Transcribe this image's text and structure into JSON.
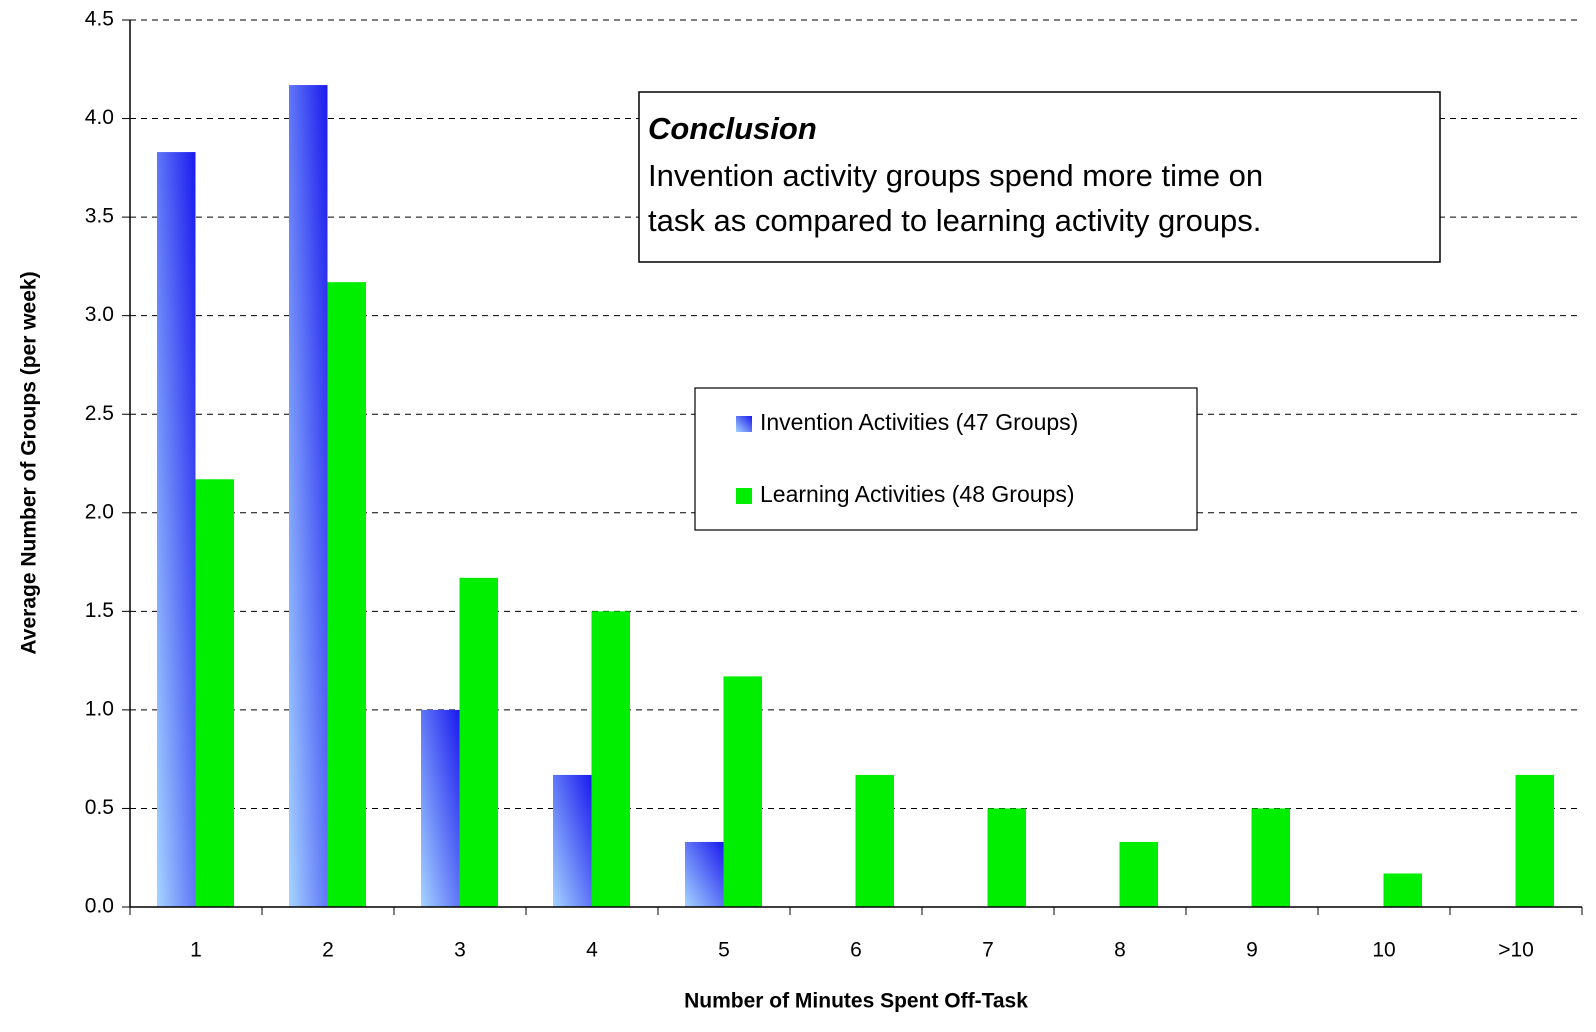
{
  "chart_data": {
    "type": "bar",
    "x_label": "Number of Minutes Spent Off-Task",
    "y_label": "Average Number of Groups (per week)",
    "categories": [
      "1",
      "2",
      "3",
      "4",
      "5",
      "6",
      "7",
      "8",
      "9",
      "10",
      ">10"
    ],
    "series": [
      {
        "name": "Invention Activities (47 Groups)",
        "color": "#1a1aee",
        "gradient": "#a6d4ff",
        "values": [
          3.83,
          4.17,
          1.0,
          0.67,
          0.33,
          0,
          0,
          0,
          0,
          0,
          0
        ]
      },
      {
        "name": "Learning Activities (48 Groups)",
        "color": "#00ee00",
        "values": [
          2.17,
          3.17,
          1.67,
          1.5,
          1.17,
          0.67,
          0.5,
          0.33,
          0.5,
          0.17,
          0.67
        ]
      }
    ],
    "ylim": [
      0,
      4.5
    ],
    "yticks": [
      {
        "value": 0,
        "label": "0.0"
      },
      0.5,
      {
        "value": 1,
        "label": "1.0"
      },
      1.5,
      {
        "value": 2,
        "label": "2.0"
      },
      2.5,
      {
        "value": 3,
        "label": "3.0"
      },
      3.5,
      {
        "value": 4,
        "label": "4.0"
      },
      4.5
    ],
    "grid": true,
    "annotation": {
      "title": "Conclusion",
      "lines": [
        "Invention activity groups spend more time on",
        "task as compared to learning activity groups."
      ]
    }
  }
}
